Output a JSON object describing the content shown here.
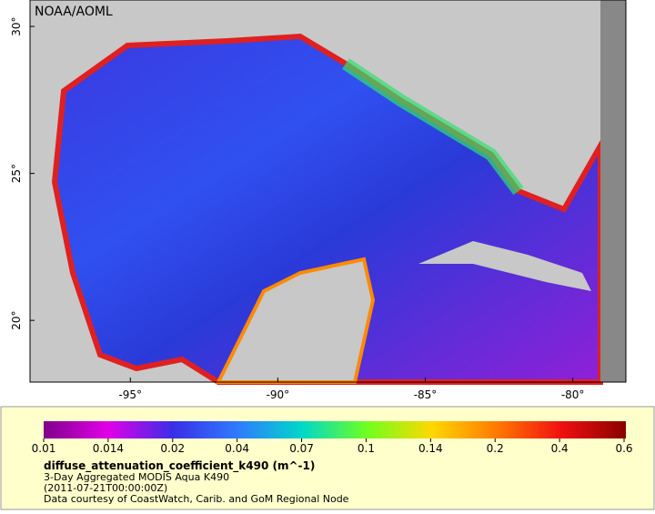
{
  "map": {
    "credit": "NOAA/AOML",
    "xlim": [
      -98.4,
      -78.2
    ],
    "ylim": [
      17.9,
      30.9
    ],
    "xticks": [
      {
        "value": -95,
        "label": "-95°"
      },
      {
        "value": -90,
        "label": "-90°"
      },
      {
        "value": -85,
        "label": "-85°"
      },
      {
        "value": -80,
        "label": "-80°"
      }
    ],
    "yticks": [
      {
        "value": 30,
        "label": "30°"
      },
      {
        "value": 25,
        "label": "25°"
      },
      {
        "value": 20,
        "label": "20°"
      }
    ]
  },
  "colorbar": {
    "scale": "log",
    "ticks": [
      0.01,
      0.014,
      0.02,
      0.04,
      0.07,
      0.1,
      0.14,
      0.2,
      0.4,
      0.6
    ],
    "colors": [
      "#80008a",
      "#e000e8",
      "#3a2ee8",
      "#2f7bff",
      "#00d8c8",
      "#70ff20",
      "#ffd800",
      "#ff7a00",
      "#f01010",
      "#8a0000"
    ],
    "title": "diffuse_attenuation_coefficient_k490 (m^-1)",
    "lines": [
      "3-Day Aggregated MODIS Aqua K490",
      "(2011-07-21T00:00:00Z)",
      "Data courtesy of CoastWatch, Carib. and GoM Regional Node"
    ]
  }
}
